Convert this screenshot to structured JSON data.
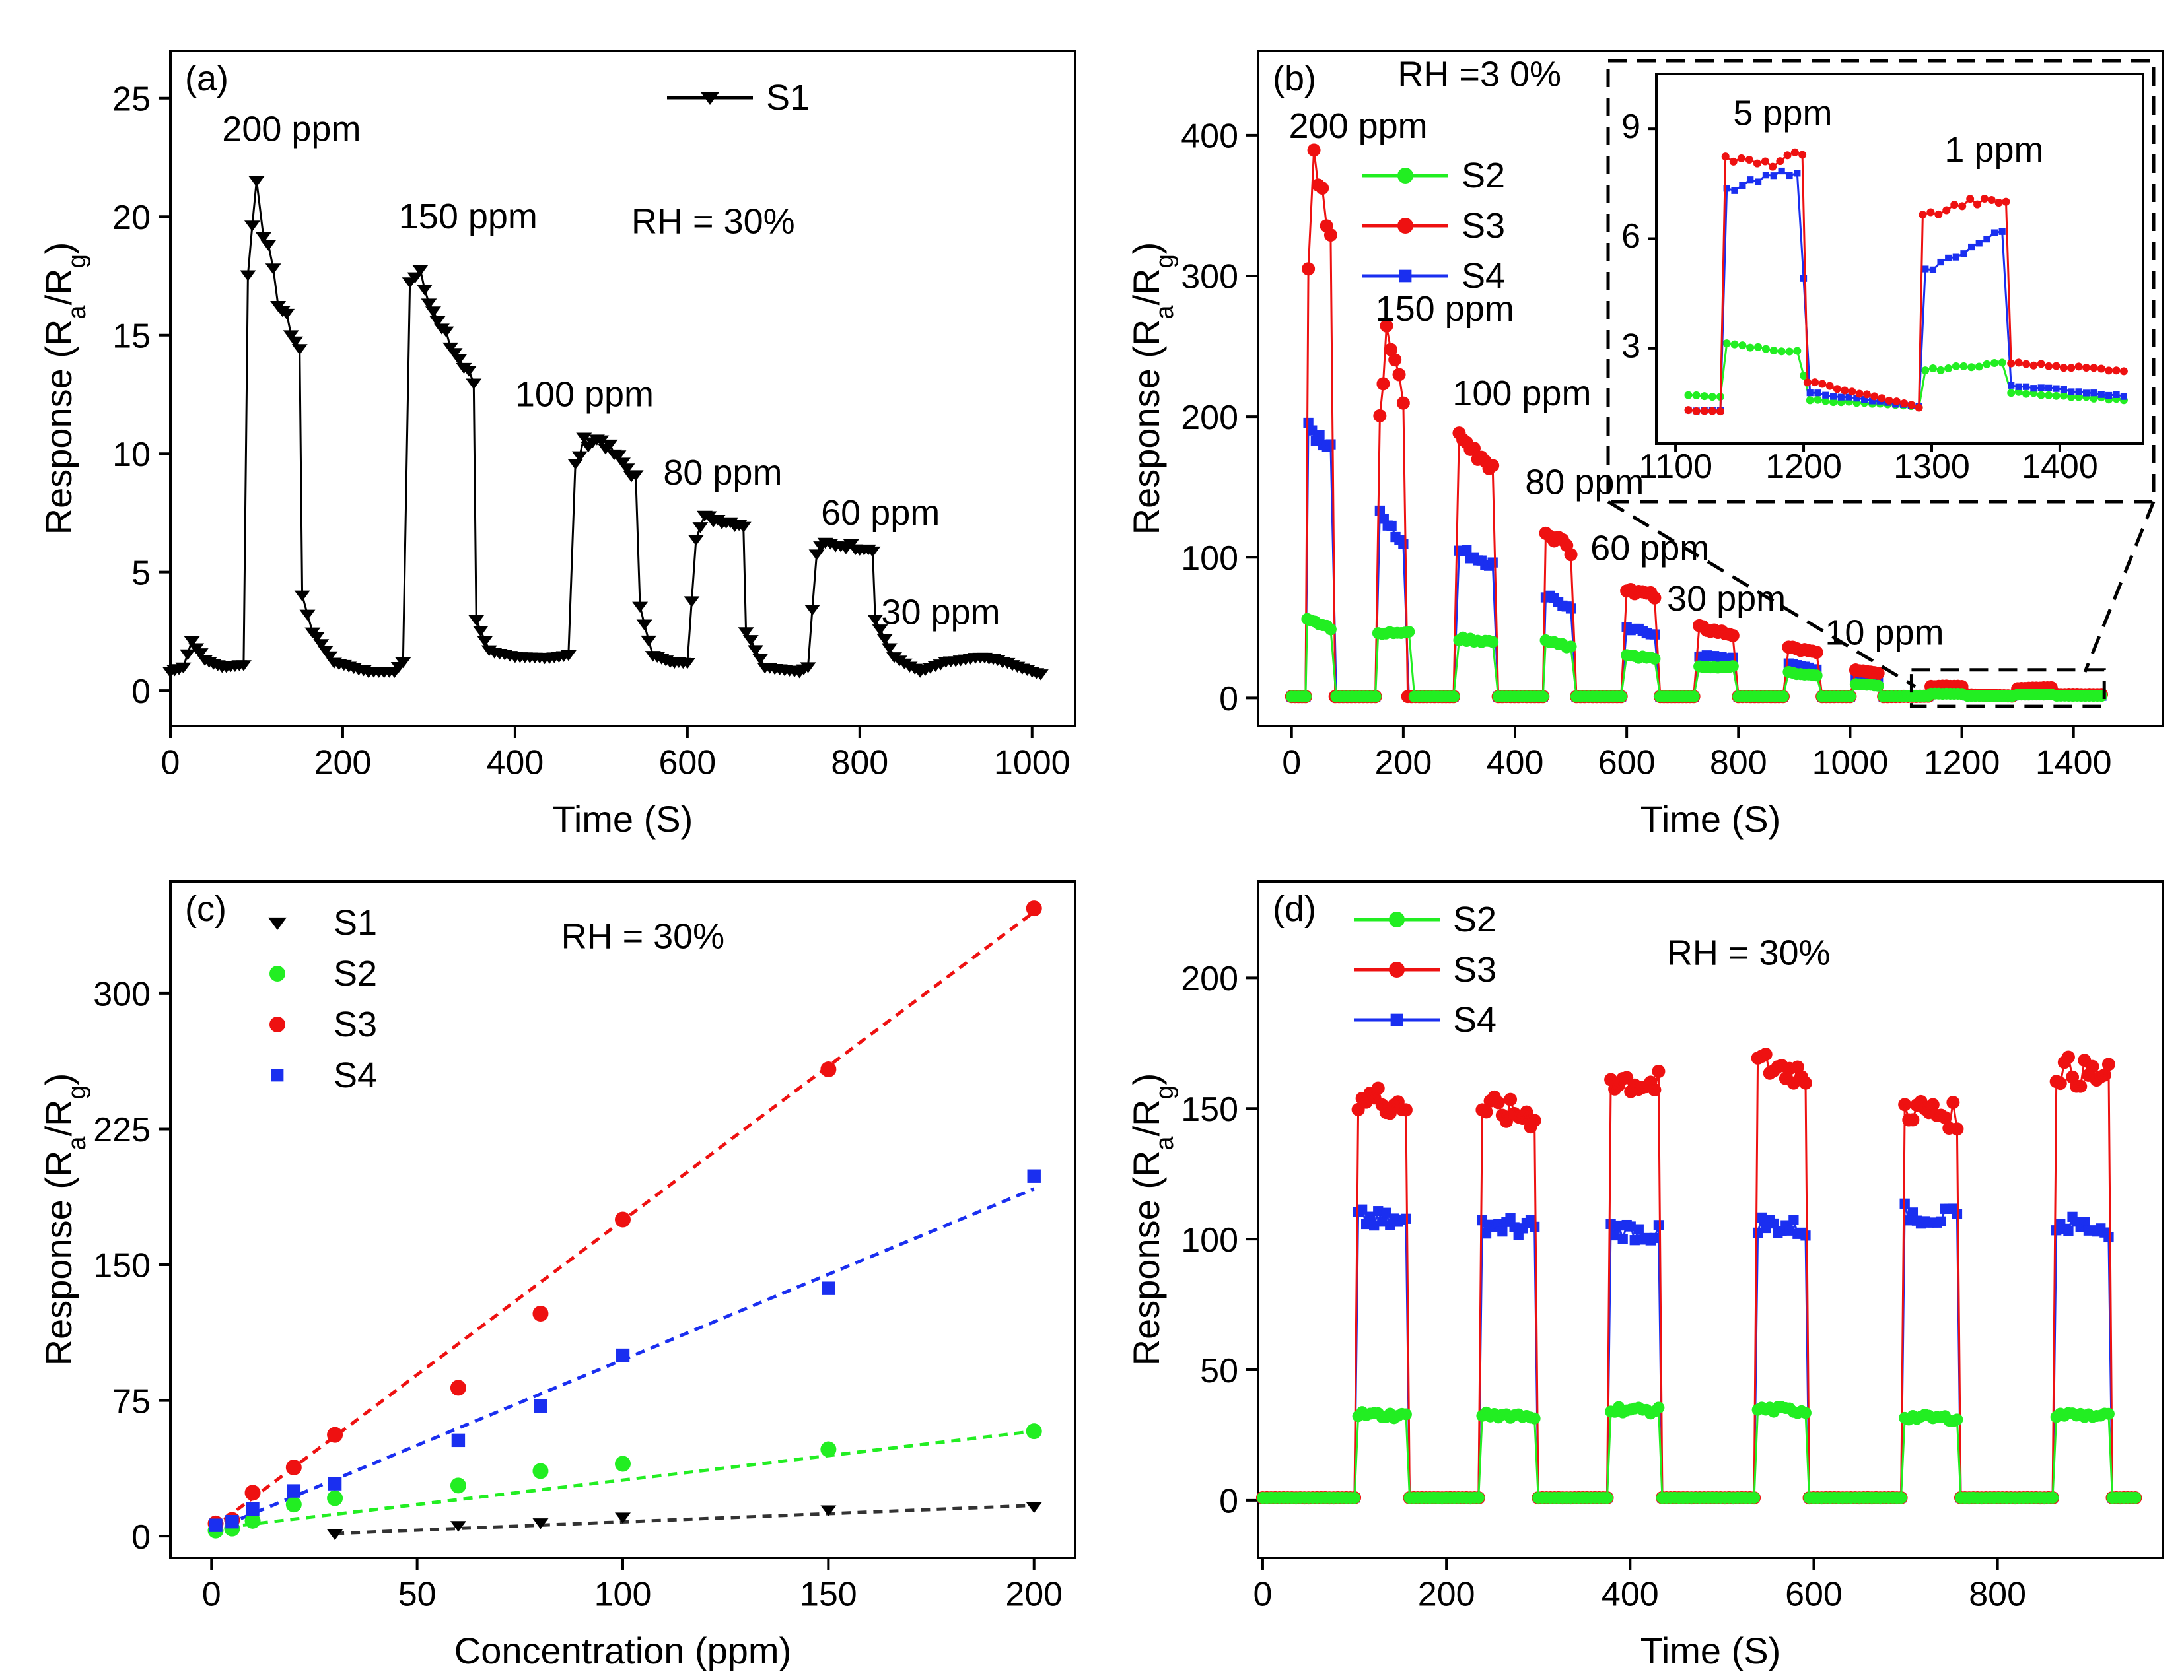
{
  "colors": {
    "S1": "#000000",
    "S2": "#22ee22",
    "S3": "#ee1111",
    "S4": "#1a2ff0",
    "axis": "#000000"
  },
  "chart_data": [
    {
      "panel": "(a)",
      "type": "line",
      "xlabel": "Time (S)",
      "ylabel_main": "Response (R",
      "ylabel_sub_a": "a",
      "ylabel_mid": "/R",
      "ylabel_sub_g": "g",
      "ylabel_end": ")",
      "xlim": [
        0,
        1050
      ],
      "ylim": [
        -1.5,
        27
      ],
      "xticks": [
        0,
        200,
        400,
        600,
        800,
        1000
      ],
      "yticks": [
        0,
        5,
        10,
        15,
        20,
        25
      ],
      "annotations": [
        {
          "text": "200 ppm",
          "x": 60,
          "y": 23.2
        },
        {
          "text": "150 ppm",
          "x": 265,
          "y": 19.5
        },
        {
          "text": "100 ppm",
          "x": 400,
          "y": 12
        },
        {
          "text": "80 ppm",
          "x": 572,
          "y": 8.7
        },
        {
          "text": "60 ppm",
          "x": 755,
          "y": 7
        },
        {
          "text": "30 ppm",
          "x": 825,
          "y": 2.8
        },
        {
          "text": "RH = 30%",
          "x": 535,
          "y": 19.3
        }
      ],
      "legend": [
        "S1"
      ],
      "series": [
        {
          "name": "S1",
          "marker": "triangle-down",
          "x": [
            0,
            15,
            25,
            40,
            60,
            85,
            90,
            100,
            108,
            125,
            140,
            150,
            153,
            165,
            190,
            230,
            260,
            270,
            278,
            290,
            310,
            335,
            352,
            355,
            370,
            400,
            440,
            462,
            470,
            480,
            500,
            520,
            540,
            545,
            560,
            580,
            600,
            610,
            620,
            640,
            665,
            668,
            690,
            730,
            740,
            750,
            760,
            790,
            815,
            818,
            840,
            870,
            900,
            940,
            960,
            1000,
            1010
          ],
          "values": [
            0.8,
            1.0,
            2.1,
            1.3,
            1.0,
            1.1,
            17.5,
            21.8,
            19.5,
            16.5,
            15.2,
            14.4,
            4.0,
            2.5,
            1.2,
            0.8,
            0.8,
            1.2,
            17.5,
            17.8,
            15.5,
            14.0,
            13.0,
            3.0,
            1.7,
            1.4,
            1.4,
            1.5,
            9.5,
            10.5,
            10.6,
            9.8,
            9.0,
            3.5,
            1.5,
            1.2,
            1.2,
            6.5,
            7.3,
            7.2,
            7.0,
            2.5,
            1.0,
            0.8,
            1.0,
            5.8,
            6.2,
            6.1,
            6.0,
            3.0,
            1.4,
            0.8,
            1.2,
            1.4,
            1.3,
            0.8,
            0.7
          ]
        }
      ]
    },
    {
      "panel": "(b)",
      "type": "line",
      "xlabel": "Time (S)",
      "ylabel_main": "Response (R",
      "ylabel_sub_a": "a",
      "ylabel_mid": "/R",
      "ylabel_sub_g": "g",
      "ylabel_end": ")",
      "xlim": [
        -60,
        1560
      ],
      "ylim": [
        -20,
        460
      ],
      "xticks": [
        0,
        200,
        400,
        600,
        800,
        1000,
        1200,
        1400
      ],
      "yticks": [
        0,
        100,
        200,
        300,
        400
      ],
      "annotations": [
        {
          "text": "RH =3 0%",
          "x": 190,
          "y": 435
        },
        {
          "text": "200 ppm",
          "x": -5,
          "y": 398
        },
        {
          "text": "150 ppm",
          "x": 150,
          "y": 268
        },
        {
          "text": "100 ppm",
          "x": 288,
          "y": 208
        },
        {
          "text": "80 ppm",
          "x": 418,
          "y": 145
        },
        {
          "text": "60 ppm",
          "x": 535,
          "y": 98
        },
        {
          "text": "30 ppm",
          "x": 672,
          "y": 62
        },
        {
          "text": "10 ppm",
          "x": 955,
          "y": 38
        }
      ],
      "legend": [
        "S2",
        "S3",
        "S4"
      ],
      "series": [
        {
          "name": "S2",
          "x": [
            0,
            25,
            28,
            70,
            80,
            150,
            155,
            210,
            220,
            290,
            300,
            360,
            370,
            450,
            455,
            500,
            510,
            590,
            600,
            650,
            660,
            720,
            730,
            790,
            800,
            880,
            890,
            940,
            950,
            1000,
            1010,
            1050,
            1060,
            1140,
            1145,
            1200,
            1210,
            1290,
            1300,
            1360,
            1370,
            1450
          ],
          "values": [
            1,
            1,
            55,
            50,
            1,
            1,
            45,
            48,
            1,
            1,
            42,
            40,
            1,
            1,
            40,
            36,
            1,
            1,
            30,
            28,
            1,
            1,
            22,
            22,
            1,
            1,
            18,
            16,
            1,
            1,
            10,
            9,
            1,
            1.5,
            3.1,
            2.9,
            1.5,
            1.4,
            2.4,
            2.5,
            1.6,
            1.5
          ]
        },
        {
          "name": "S3",
          "x": [
            0,
            25,
            30,
            40,
            70,
            78,
            150,
            158,
            170,
            200,
            208,
            290,
            300,
            360,
            370,
            450,
            455,
            500,
            510,
            590,
            600,
            650,
            660,
            720,
            730,
            790,
            800,
            880,
            890,
            940,
            950,
            1000,
            1010,
            1050,
            1060,
            1140,
            1145,
            1200,
            1210,
            1290,
            1300,
            1360,
            1370,
            1450
          ],
          "values": [
            1,
            1,
            300,
            385,
            330,
            1,
            1,
            200,
            260,
            215,
            1,
            1,
            185,
            165,
            1,
            1,
            120,
            105,
            1,
            1,
            78,
            72,
            1,
            1,
            50,
            45,
            1,
            1,
            36,
            32,
            1,
            1,
            20,
            18,
            1,
            1.3,
            8.2,
            8.3,
            2.3,
            1.4,
            6.6,
            7.2,
            2.5,
            2.4
          ]
        },
        {
          "name": "S4",
          "x": [
            0,
            25,
            30,
            70,
            80,
            150,
            158,
            200,
            210,
            290,
            300,
            360,
            370,
            450,
            455,
            500,
            510,
            590,
            600,
            650,
            660,
            720,
            730,
            790,
            800,
            880,
            890,
            940,
            950,
            1000,
            1010,
            1050,
            1060,
            1140,
            1145,
            1200,
            1210,
            1290,
            1300,
            1360,
            1370,
            1450
          ],
          "values": [
            1,
            1,
            190,
            180,
            1,
            1,
            130,
            110,
            1,
            1,
            105,
            95,
            1,
            1,
            72,
            65,
            1,
            1,
            50,
            45,
            1,
            1,
            30,
            28,
            1,
            1,
            25,
            20,
            1,
            1,
            15,
            13,
            1,
            1.3,
            7.5,
            7.8,
            1.8,
            1.5,
            5.0,
            6.0,
            2.0,
            1.6
          ]
        }
      ],
      "inset": {
        "xlim": [
          1085,
          1465
        ],
        "ylim": [
          0.4,
          10.5
        ],
        "xticks": [
          1100,
          1200,
          1300,
          1400
        ],
        "yticks": [
          3,
          6,
          9
        ],
        "annotations": [
          {
            "text": "5 ppm",
            "x": 1145,
            "y": 9.1
          },
          {
            "text": "1 ppm",
            "x": 1310,
            "y": 8.1
          }
        ],
        "series": [
          {
            "name": "S2",
            "x": [
              1110,
              1135,
              1140,
              1195,
              1205,
              1290,
              1295,
              1355,
              1362,
              1450
            ],
            "values": [
              1.7,
              1.7,
              3.1,
              2.9,
              1.6,
              1.4,
              2.4,
              2.6,
              1.8,
              1.6
            ]
          },
          {
            "name": "S3",
            "x": [
              1110,
              1135,
              1139,
              1170,
              1199,
              1203,
              1290,
              1293,
              1330,
              1358,
              1362,
              1450
            ],
            "values": [
              1.3,
              1.3,
              8.2,
              8.0,
              8.3,
              2.1,
              1.4,
              6.6,
              7.0,
              7.0,
              2.6,
              2.4
            ]
          },
          {
            "name": "S4",
            "x": [
              1110,
              1135,
              1140,
              1195,
              1205,
              1290,
              1295,
              1355,
              1362,
              1450
            ],
            "values": [
              1.3,
              1.3,
              7.3,
              7.9,
              1.8,
              1.4,
              5.1,
              6.2,
              2.0,
              1.7
            ]
          }
        ]
      }
    },
    {
      "panel": "(c)",
      "type": "scatter",
      "xlabel": "Concentration (ppm)",
      "ylabel_main": "Response (R",
      "ylabel_sub_a": "a",
      "ylabel_mid": "/R",
      "ylabel_sub_g": "g",
      "ylabel_end": ")",
      "xlim": [
        -10,
        210
      ],
      "ylim": [
        -12,
        362
      ],
      "xticks": [
        0,
        50,
        100,
        150,
        200
      ],
      "yticks": [
        0,
        75,
        150,
        225,
        300
      ],
      "annotations": [
        {
          "text": "RH = 30%",
          "x": 85,
          "y": 325
        }
      ],
      "legend": [
        "S1",
        "S2",
        "S3",
        "S4"
      ],
      "series": [
        {
          "name": "S1",
          "marker": "triangle-down",
          "x": [
            30,
            60,
            80,
            100,
            150,
            200
          ],
          "values": [
            1.2,
            5.8,
            7.3,
            10.5,
            14.5,
            16.2
          ],
          "fit": [
            [
              30,
              1.5
            ],
            [
              200,
              17
            ]
          ]
        },
        {
          "name": "S2",
          "marker": "circle",
          "x": [
            1,
            5,
            10,
            20,
            30,
            60,
            80,
            100,
            150,
            200
          ],
          "values": [
            3.1,
            4.2,
            8.5,
            17.5,
            21,
            28,
            36,
            40,
            48,
            58
          ],
          "fit": [
            [
              0,
              4
            ],
            [
              200,
              58
            ]
          ]
        },
        {
          "name": "S3",
          "marker": "circle",
          "x": [
            1,
            5,
            10,
            20,
            30,
            60,
            80,
            100,
            150,
            200
          ],
          "values": [
            7,
            9,
            24,
            38,
            56,
            82,
            123,
            175,
            258,
            347
          ],
          "fit": [
            [
              0,
              4
            ],
            [
              200,
              345
            ]
          ]
        },
        {
          "name": "S4",
          "marker": "square",
          "x": [
            1,
            5,
            10,
            20,
            30,
            60,
            80,
            100,
            150,
            200
          ],
          "values": [
            6,
            8,
            15,
            25,
            29,
            53,
            72,
            100,
            137,
            199
          ],
          "fit": [
            [
              0,
              3
            ],
            [
              200,
              192
            ]
          ]
        }
      ]
    },
    {
      "panel": "(d)",
      "type": "line",
      "xlabel": "Time (S)",
      "ylabel_main": "Response (R",
      "ylabel_sub_a": "a",
      "ylabel_mid": "/R",
      "ylabel_sub_g": "g",
      "ylabel_end": ")",
      "xlim": [
        -5,
        980
      ],
      "ylim": [
        -22,
        237
      ],
      "xticks": [
        0,
        200,
        400,
        600,
        800
      ],
      "yticks": [
        0,
        50,
        100,
        150,
        200
      ],
      "annotations": [
        {
          "text": "RH = 30%",
          "x": 440,
          "y": 205
        }
      ],
      "legend": [
        "S2",
        "S3",
        "S4"
      ],
      "cycles": [
        {
          "on": 100,
          "off": 160
        },
        {
          "on": 235,
          "off": 300
        },
        {
          "on": 375,
          "off": 435
        },
        {
          "on": 535,
          "off": 595
        },
        {
          "on": 695,
          "off": 760
        },
        {
          "on": 860,
          "off": 925
        }
      ],
      "series": [
        {
          "name": "S2",
          "plateau": [
            33,
            33,
            35,
            35,
            32,
            33
          ]
        },
        {
          "name": "S3",
          "plateau": [
            155,
            150,
            162,
            167,
            150,
            165
          ]
        },
        {
          "name": "S4",
          "plateau": [
            108,
            106,
            104,
            106,
            110,
            106
          ]
        }
      ],
      "baseline": 1,
      "x_end": 950
    }
  ]
}
